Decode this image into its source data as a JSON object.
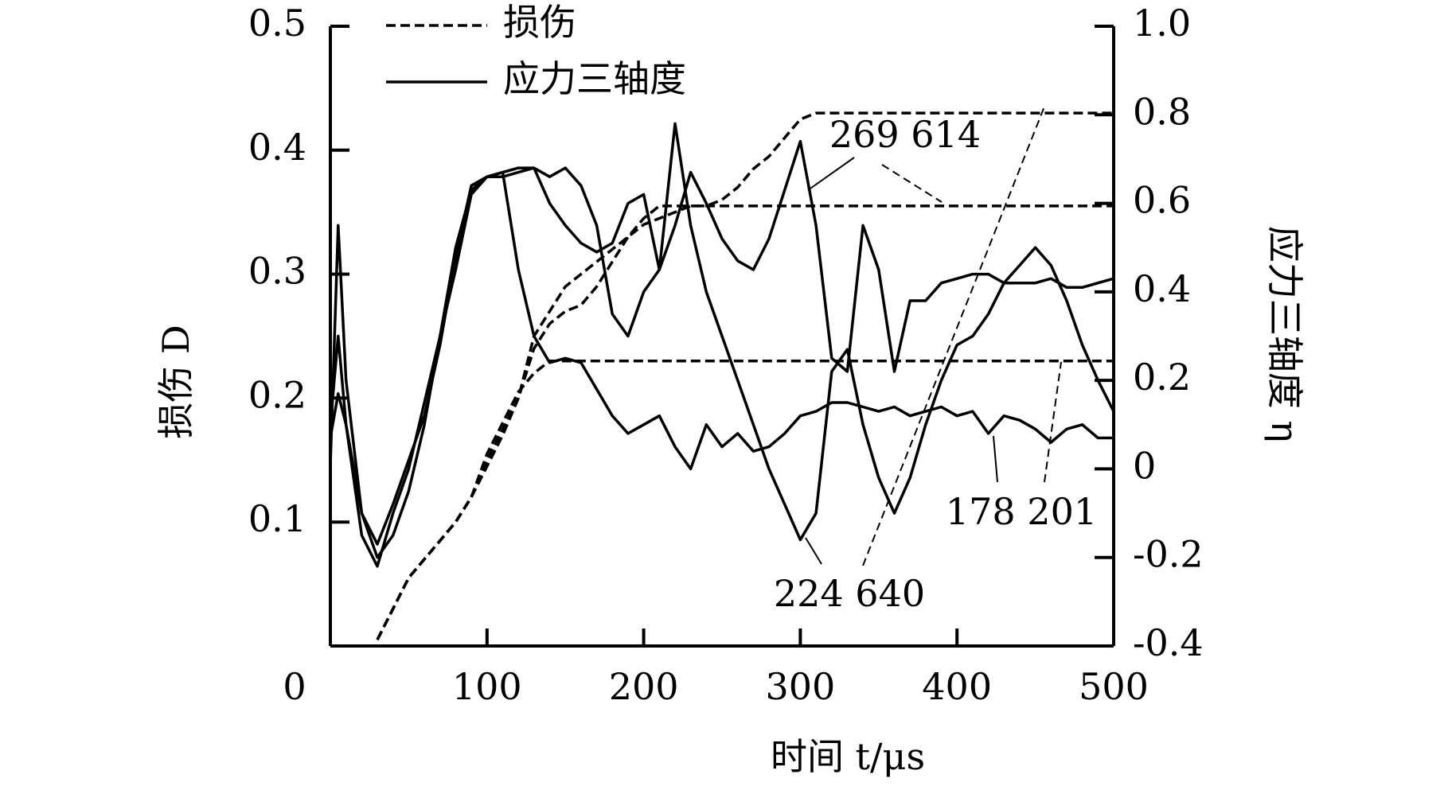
{
  "chart_data": {
    "type": "line",
    "x_label": "时间 t/μs",
    "y_label": "损伤 D",
    "y2_label": "应力三轴度 η",
    "legend": [
      {
        "label": "损伤",
        "style": "dashed"
      },
      {
        "label": "应力三轴度",
        "style": "solid"
      }
    ],
    "annotations": [
      "269 614",
      "224 640",
      "178 201"
    ],
    "xlim": [
      0,
      500
    ],
    "xticks": [
      0,
      100,
      200,
      300,
      400,
      500
    ],
    "ylim": [
      0,
      0.5
    ],
    "yticks": [
      0.1,
      0.2,
      0.3,
      0.4,
      0.5
    ],
    "y2lim": [
      -0.4,
      1.0
    ],
    "y2ticks": [
      -0.4,
      -0.2,
      0,
      0.2,
      0.4,
      0.6,
      0.8,
      {
        "value": 1.0,
        "label": "1.0"
      }
    ],
    "x": [
      0,
      5,
      10,
      20,
      30,
      40,
      50,
      60,
      70,
      80,
      90,
      100,
      110,
      120,
      130,
      140,
      150,
      160,
      170,
      180,
      190,
      200,
      210,
      220,
      230,
      240,
      250,
      260,
      270,
      280,
      290,
      300,
      310,
      320,
      330,
      340,
      350,
      360,
      370,
      380,
      390,
      400,
      410,
      420,
      430,
      440,
      450,
      460,
      470,
      480,
      490,
      500
    ],
    "series": [
      {
        "style": "dashed",
        "color": "#000000",
        "values": [
          null,
          null,
          null,
          null,
          0.005,
          0.03,
          0.055,
          0.07,
          0.085,
          0.1,
          0.12,
          0.155,
          0.18,
          0.205,
          0.22,
          0.23,
          0.23,
          0.23,
          0.23,
          0.23,
          0.23,
          0.23,
          0.23,
          0.23,
          0.23,
          0.23,
          0.23,
          0.23,
          0.23,
          0.23,
          0.23,
          0.23,
          0.23,
          0.23,
          0.23,
          0.23,
          0.23,
          0.23,
          0.23,
          0.23,
          0.23,
          0.23,
          0.23,
          0.23,
          0.23,
          0.23,
          0.23,
          0.23,
          0.23,
          0.23,
          0.23,
          0.23
        ]
      },
      {
        "style": "dashed",
        "color": "#000000",
        "values": [
          null,
          null,
          null,
          null,
          0.005,
          0.03,
          0.055,
          0.07,
          0.085,
          0.1,
          0.12,
          0.15,
          0.175,
          0.2,
          0.24,
          0.26,
          0.27,
          0.275,
          0.29,
          0.31,
          0.33,
          0.345,
          0.355,
          0.355,
          0.355,
          0.355,
          0.355,
          0.355,
          0.355,
          0.355,
          0.355,
          0.355,
          0.355,
          0.355,
          0.355,
          0.355,
          0.355,
          0.355,
          0.355,
          0.355,
          0.355,
          0.355,
          0.355,
          0.355,
          0.355,
          0.355,
          0.355,
          0.355,
          0.355,
          0.355,
          0.355,
          0.355
        ]
      },
      {
        "style": "dashed",
        "color": "#000000",
        "values": [
          null,
          null,
          null,
          null,
          0.005,
          0.03,
          0.055,
          0.07,
          0.085,
          0.1,
          0.12,
          0.145,
          0.17,
          0.2,
          0.25,
          0.27,
          0.29,
          0.3,
          0.31,
          0.32,
          0.33,
          0.34,
          0.345,
          0.35,
          0.355,
          0.355,
          0.36,
          0.37,
          0.385,
          0.395,
          0.41,
          0.425,
          0.43,
          0.43,
          0.43,
          0.43,
          0.43,
          0.43,
          0.43,
          0.43,
          0.43,
          0.43,
          0.43,
          0.43,
          0.43,
          0.43,
          0.43,
          0.43,
          0.43,
          0.43,
          0.43,
          0.43
        ]
      },
      {
        "style": "solid",
        "axis": "y2",
        "color": "#000000",
        "values": [
          0.01,
          0.55,
          0.2,
          -0.1,
          -0.2,
          -0.15,
          -0.05,
          0.1,
          0.3,
          0.5,
          0.63,
          0.66,
          0.67,
          0.45,
          0.3,
          0.24,
          0.25,
          0.24,
          0.18,
          0.12,
          0.08,
          0.1,
          0.12,
          0.05,
          0.0,
          0.1,
          0.05,
          0.08,
          0.04,
          0.05,
          0.08,
          0.12,
          0.13,
          0.15,
          0.15,
          0.14,
          0.13,
          0.14,
          0.12,
          0.13,
          0.14,
          0.12,
          0.13,
          0.08,
          0.12,
          0.11,
          0.09,
          0.06,
          0.09,
          0.1,
          0.07,
          0.07
        ]
      },
      {
        "style": "solid",
        "axis": "y2",
        "color": "#000000",
        "values": [
          0.1,
          0.3,
          0.1,
          -0.15,
          -0.22,
          -0.1,
          0,
          0.15,
          0.3,
          0.45,
          0.62,
          0.66,
          0.66,
          0.67,
          0.68,
          0.66,
          0.68,
          0.64,
          0.55,
          0.35,
          0.3,
          0.4,
          0.45,
          0.55,
          0.67,
          0.6,
          0.52,
          0.47,
          0.45,
          0.52,
          0.63,
          0.74,
          0.55,
          0.25,
          0.22,
          0.55,
          0.45,
          0.22,
          0.38,
          0.38,
          0.42,
          0.43,
          0.44,
          0.44,
          0.42,
          0.42,
          0.42,
          0.43,
          0.41,
          0.41,
          0.42,
          0.43
        ]
      },
      {
        "style": "solid",
        "axis": "y2",
        "color": "#000000",
        "values": [
          0.07,
          0.17,
          0.1,
          -0.1,
          -0.17,
          -0.08,
          0.02,
          0.12,
          0.28,
          0.48,
          0.64,
          0.66,
          0.67,
          0.68,
          0.68,
          0.6,
          0.55,
          0.51,
          0.49,
          0.51,
          0.6,
          0.62,
          0.45,
          0.78,
          0.55,
          0.4,
          0.3,
          0.2,
          0.1,
          0,
          -0.08,
          -0.16,
          -0.1,
          0.22,
          0.27,
          0.1,
          -0.02,
          -0.1,
          -0.02,
          0.1,
          0.2,
          0.28,
          0.3,
          0.35,
          0.42,
          0.46,
          0.5,
          0.46,
          0.38,
          0.28,
          0.2,
          0.13
        ]
      }
    ]
  }
}
